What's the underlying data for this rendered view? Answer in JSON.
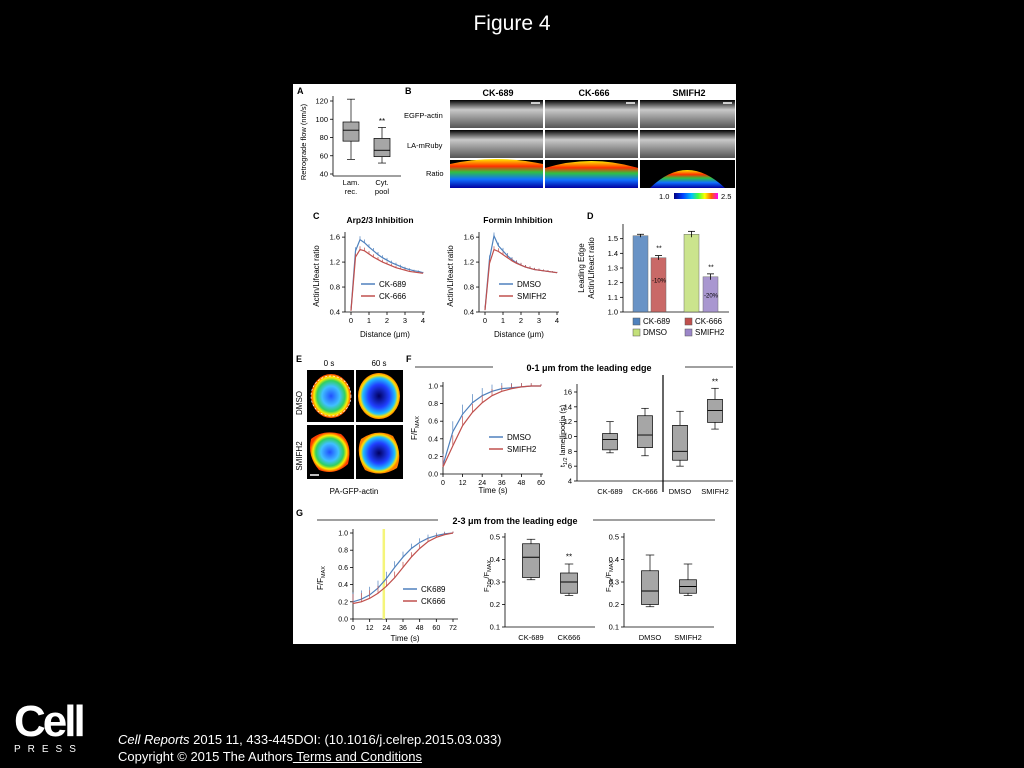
{
  "slide": {
    "title": "Figure 4",
    "citation": {
      "journal": "Cell Reports",
      "details": " 2015 11, 433-445DOI: (10.1016/j.celrep.2015.03.033)",
      "copyright": "Copyright © 2015 The Authors",
      "terms_link": " Terms and Conditions"
    },
    "logo": {
      "word": "Cell",
      "press": "PRESS"
    }
  },
  "panels": {
    "A": {
      "label": "A",
      "ylabel": "Retrograde flow (nm/s)",
      "categories": [
        "Lam.\nrec.",
        "Cyt.\npool"
      ],
      "yticks": [
        "40",
        "60",
        "80",
        "100",
        "120"
      ],
      "significance": "**"
    },
    "B": {
      "label": "B",
      "columns": [
        "CK-689",
        "CK-666",
        "SMIFH2"
      ],
      "rows": [
        "EGFP-actin",
        "LA-mRuby",
        "Ratio"
      ],
      "scale_min": "1.0",
      "scale_max": "2.5"
    },
    "C": {
      "label": "C",
      "left_title": "Arp2/3 Inhibition",
      "right_title": "Formin Inhibition",
      "ylabel": "Actin/Lifeact ratio",
      "xlabel": "Distance (μm)",
      "yticks": [
        "0.4",
        "0.8",
        "1.2",
        "1.6"
      ],
      "xticks": [
        "0",
        "1",
        "2",
        "3",
        "4"
      ],
      "left_legend": [
        "CK-689",
        "CK-666"
      ],
      "right_legend": [
        "DMSO",
        "SMIFH2"
      ]
    },
    "D": {
      "label": "D",
      "ylabel": "Leading Edge\nActin/Lifeact ratio",
      "yticks": [
        "1.0",
        "1.1",
        "1.2",
        "1.3",
        "1.4",
        "1.5"
      ],
      "annotations": [
        "**",
        "-10%",
        "**",
        "-20%"
      ],
      "legend": [
        "CK-689",
        "CK-666",
        "DMSO",
        "SMIFH2"
      ]
    },
    "E": {
      "label": "E",
      "times": [
        "0 s",
        "60 s"
      ],
      "rows": [
        "DMSO",
        "SMIFH2"
      ],
      "caption": "PA-GFP-actin"
    },
    "F": {
      "label": "F",
      "title": "0-1 μm from the leading edge",
      "ylabel": "F/F",
      "ylabel_sub": "MAX",
      "xlabel": "Time (s)",
      "xticks": [
        "0",
        "12",
        "24",
        "36",
        "48",
        "60"
      ],
      "yticks": [
        "0.0",
        "0.2",
        "0.4",
        "0.6",
        "0.8",
        "1.0"
      ],
      "legend": [
        "DMSO",
        "SMIFH2"
      ],
      "box_ylabel_main": "t",
      "box_ylabel_sub": "1/2",
      "box_ylabel_rest": " lamellipodia (s)",
      "box_yticks": [
        "4",
        "6",
        "8",
        "10",
        "12",
        "14",
        "16"
      ],
      "box_categories": [
        "CK-689",
        "CK-666",
        "DMSO",
        "SMIFH2"
      ],
      "significance": "**"
    },
    "G": {
      "label": "G",
      "title": "2-3 μm from the leading edge",
      "ylabel": "F/F",
      "ylabel_sub": "MAX",
      "xlabel": "Time (s)",
      "xticks": [
        "0",
        "12",
        "24",
        "36",
        "48",
        "60",
        "72"
      ],
      "yticks": [
        "0.0",
        "0.2",
        "0.4",
        "0.6",
        "0.8",
        "1.0"
      ],
      "legend": [
        "CK689",
        "CK666"
      ],
      "box_ylabel_main": "F",
      "box_ylabel_sub": "20s",
      "box_ylabel_mid": "/F",
      "box_ylabel_sub2": "MAX",
      "box_yticks": [
        "0.1",
        "0.2",
        "0.3",
        "0.4",
        "0.5"
      ],
      "box1_categories": [
        "CK-689",
        "CK666"
      ],
      "box2_categories": [
        "DMSO",
        "SMIFH2"
      ],
      "significance": "**"
    }
  },
  "colors": {
    "blue": "#4f81bd",
    "red": "#c0504d",
    "box": "#a6a6a6",
    "green": "#c3e07a",
    "purple": "#9b86c8",
    "yellow": "#f5f57a"
  },
  "chart_data": [
    {
      "type": "box",
      "panel": "A",
      "categories": [
        "Lam. rec.",
        "Cyt. pool"
      ],
      "boxes": [
        {
          "min": 56,
          "q1": 76,
          "median": 88,
          "q3": 97,
          "max": 122
        },
        {
          "min": 52,
          "q1": 59,
          "median": 66,
          "q3": 79,
          "max": 91
        }
      ],
      "ylim": [
        40,
        130
      ]
    },
    {
      "type": "line",
      "panel": "C-left",
      "x": [
        0,
        0.25,
        0.5,
        0.75,
        1,
        1.25,
        1.5,
        1.75,
        2,
        2.25,
        2.5,
        2.75,
        3,
        3.25,
        3.5,
        3.75,
        4
      ],
      "series": [
        {
          "name": "CK-689",
          "values": [
            0.43,
            1.38,
            1.56,
            1.51,
            1.44,
            1.38,
            1.32,
            1.27,
            1.23,
            1.19,
            1.16,
            1.13,
            1.1,
            1.08,
            1.06,
            1.05,
            1.03
          ]
        },
        {
          "name": "CK-666",
          "values": [
            0.42,
            1.28,
            1.4,
            1.38,
            1.33,
            1.28,
            1.24,
            1.2,
            1.17,
            1.14,
            1.11,
            1.09,
            1.07,
            1.05,
            1.04,
            1.03,
            1.02
          ]
        }
      ],
      "ylim": [
        0.4,
        1.65
      ],
      "xlim": [
        0,
        4
      ]
    },
    {
      "type": "line",
      "panel": "C-right",
      "x": [
        0,
        0.25,
        0.5,
        0.75,
        1,
        1.25,
        1.5,
        1.75,
        2,
        2.25,
        2.5,
        2.75,
        3,
        3.25,
        3.5,
        3.75,
        4
      ],
      "series": [
        {
          "name": "DMSO",
          "values": [
            0.44,
            1.25,
            1.62,
            1.46,
            1.38,
            1.3,
            1.24,
            1.19,
            1.15,
            1.12,
            1.1,
            1.08,
            1.07,
            1.06,
            1.05,
            1.04,
            1.03
          ]
        },
        {
          "name": "SMIFH2",
          "values": [
            0.43,
            1.18,
            1.4,
            1.37,
            1.32,
            1.27,
            1.22,
            1.18,
            1.15,
            1.12,
            1.1,
            1.08,
            1.07,
            1.06,
            1.05,
            1.04,
            1.03
          ]
        }
      ],
      "ylim": [
        0.4,
        1.65
      ],
      "xlim": [
        0,
        4
      ]
    },
    {
      "type": "bar",
      "panel": "D",
      "categories": [
        "CK-689",
        "CK-666",
        "DMSO",
        "SMIFH2"
      ],
      "values": [
        1.52,
        1.37,
        1.53,
        1.24
      ],
      "errors": [
        0.01,
        0.015,
        0.02,
        0.02
      ],
      "ylim": [
        1.0,
        1.6
      ]
    },
    {
      "type": "line",
      "panel": "F",
      "x": [
        0,
        6,
        12,
        18,
        24,
        30,
        36,
        42,
        48,
        54,
        60
      ],
      "series": [
        {
          "name": "DMSO",
          "values": [
            0.1,
            0.48,
            0.68,
            0.81,
            0.89,
            0.94,
            0.97,
            0.98,
            0.99,
            1.0,
            1.0
          ]
        },
        {
          "name": "SMIFH2",
          "values": [
            0.08,
            0.32,
            0.55,
            0.7,
            0.81,
            0.89,
            0.94,
            0.97,
            0.99,
            1.0,
            1.0
          ]
        }
      ],
      "ylim": [
        0,
        1.05
      ],
      "xlim": [
        0,
        60
      ]
    },
    {
      "type": "box",
      "panel": "F-box",
      "categories": [
        "CK-689",
        "CK-666",
        "DMSO",
        "SMIFH2"
      ],
      "boxes": [
        {
          "min": 7.8,
          "q1": 8.2,
          "median": 9.6,
          "q3": 10.4,
          "max": 12.0
        },
        {
          "min": 7.4,
          "q1": 8.5,
          "median": 10.2,
          "q3": 12.8,
          "max": 13.8
        },
        {
          "min": 6.0,
          "q1": 6.8,
          "median": 8.0,
          "q3": 11.5,
          "max": 13.4
        },
        {
          "min": 11.0,
          "q1": 11.9,
          "median": 13.5,
          "q3": 15.0,
          "max": 16.5
        }
      ],
      "ylim": [
        4,
        17
      ]
    },
    {
      "type": "line",
      "panel": "G",
      "x": [
        0,
        6,
        12,
        18,
        24,
        30,
        36,
        42,
        48,
        54,
        60,
        66,
        72
      ],
      "series": [
        {
          "name": "CK689",
          "values": [
            0.2,
            0.23,
            0.28,
            0.36,
            0.47,
            0.6,
            0.72,
            0.82,
            0.89,
            0.94,
            0.97,
            0.99,
            1.0
          ]
        },
        {
          "name": "CK666",
          "values": [
            0.18,
            0.2,
            0.24,
            0.3,
            0.38,
            0.48,
            0.6,
            0.72,
            0.82,
            0.9,
            0.95,
            0.98,
            1.0
          ]
        }
      ],
      "ylim": [
        0,
        1.05
      ],
      "xlim": [
        0,
        75
      ],
      "highlight_x": 22
    },
    {
      "type": "box",
      "panel": "G-box1",
      "categories": [
        "CK-689",
        "CK666"
      ],
      "boxes": [
        {
          "min": 0.31,
          "q1": 0.32,
          "median": 0.41,
          "q3": 0.47,
          "max": 0.49
        },
        {
          "min": 0.24,
          "q1": 0.25,
          "median": 0.3,
          "q3": 0.34,
          "max": 0.38
        }
      ],
      "ylim": [
        0.1,
        0.55
      ]
    },
    {
      "type": "box",
      "panel": "G-box2",
      "categories": [
        "DMSO",
        "SMIFH2"
      ],
      "boxes": [
        {
          "min": 0.19,
          "q1": 0.2,
          "median": 0.26,
          "q3": 0.35,
          "max": 0.42
        },
        {
          "min": 0.24,
          "q1": 0.25,
          "median": 0.28,
          "q3": 0.31,
          "max": 0.38
        }
      ],
      "ylim": [
        0.1,
        0.55
      ]
    }
  ]
}
